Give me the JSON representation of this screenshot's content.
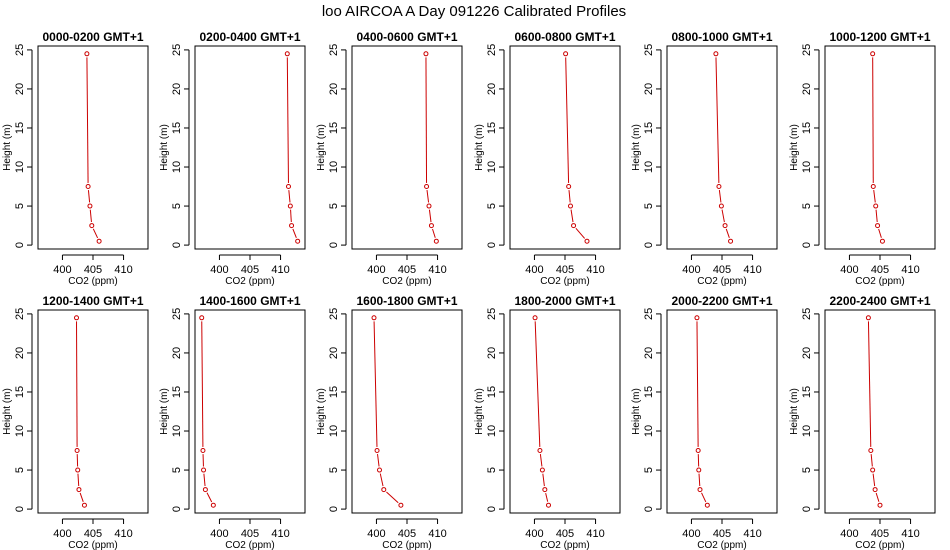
{
  "figure": {
    "title": "loo AIRCOA A  Day 091226  Calibrated Profiles"
  },
  "chart_data": [
    {
      "type": "line",
      "title": "0000-0200 GMT+1",
      "xlabel": "CO2 (ppm)",
      "ylabel": "Height (m)",
      "xlim": [
        396,
        414
      ],
      "ylim": [
        -0.5,
        25.5
      ],
      "xticks": [
        400,
        405,
        410
      ],
      "yticks": [
        0,
        5,
        10,
        15,
        20,
        25
      ],
      "grid": false,
      "line_color": "#cc0000",
      "series": [
        {
          "x": [
            406.0,
            404.8,
            404.5,
            404.2,
            404.0
          ],
          "y": [
            0.5,
            2.5,
            5,
            7.5,
            24.5
          ]
        }
      ]
    },
    {
      "type": "line",
      "title": "0200-0400 GMT+1",
      "xlabel": "CO2 (ppm)",
      "ylabel": "Height (m)",
      "xlim": [
        396,
        414
      ],
      "ylim": [
        -0.5,
        25.5
      ],
      "xticks": [
        400,
        405,
        410
      ],
      "yticks": [
        0,
        5,
        10,
        15,
        20,
        25
      ],
      "grid": false,
      "line_color": "#cc0000",
      "series": [
        {
          "x": [
            412.8,
            411.8,
            411.6,
            411.3,
            411.1
          ],
          "y": [
            0.5,
            2.5,
            5,
            7.5,
            24.5
          ]
        }
      ]
    },
    {
      "type": "line",
      "title": "0400-0600 GMT+1",
      "xlabel": "CO2 (ppm)",
      "ylabel": "Height (m)",
      "xlim": [
        396,
        414
      ],
      "ylim": [
        -0.5,
        25.5
      ],
      "xticks": [
        400,
        405,
        410
      ],
      "yticks": [
        0,
        5,
        10,
        15,
        20,
        25
      ],
      "grid": false,
      "line_color": "#cc0000",
      "series": [
        {
          "x": [
            409.8,
            409.0,
            408.6,
            408.2,
            408.1
          ],
          "y": [
            0.5,
            2.5,
            5,
            7.5,
            24.5
          ]
        }
      ]
    },
    {
      "type": "line",
      "title": "0600-0800 GMT+1",
      "xlabel": "CO2 (ppm)",
      "ylabel": "Height (m)",
      "xlim": [
        396,
        414
      ],
      "ylim": [
        -0.5,
        25.5
      ],
      "xticks": [
        400,
        405,
        410
      ],
      "yticks": [
        0,
        5,
        10,
        15,
        20,
        25
      ],
      "grid": false,
      "line_color": "#cc0000",
      "series": [
        {
          "x": [
            408.6,
            406.4,
            405.9,
            405.6,
            405.1
          ],
          "y": [
            0.5,
            2.5,
            5,
            7.5,
            24.5
          ]
        }
      ]
    },
    {
      "type": "line",
      "title": "0800-1000 GMT+1",
      "xlabel": "CO2 (ppm)",
      "ylabel": "Height (m)",
      "xlim": [
        396,
        414
      ],
      "ylim": [
        -0.5,
        25.5
      ],
      "xticks": [
        400,
        405,
        410
      ],
      "yticks": [
        0,
        5,
        10,
        15,
        20,
        25
      ],
      "grid": false,
      "line_color": "#cc0000",
      "series": [
        {
          "x": [
            406.4,
            405.5,
            404.9,
            404.5,
            404.0
          ],
          "y": [
            0.5,
            2.5,
            5,
            7.5,
            24.5
          ]
        }
      ]
    },
    {
      "type": "line",
      "title": "1000-1200 GMT+1",
      "xlabel": "CO2 (ppm)",
      "ylabel": "Height (m)",
      "xlim": [
        396,
        414
      ],
      "ylim": [
        -0.5,
        25.5
      ],
      "xticks": [
        400,
        405,
        410
      ],
      "yticks": [
        0,
        5,
        10,
        15,
        20,
        25
      ],
      "grid": false,
      "line_color": "#cc0000",
      "series": [
        {
          "x": [
            405.4,
            404.6,
            404.3,
            403.9,
            403.8
          ],
          "y": [
            0.5,
            2.5,
            5,
            7.5,
            24.5
          ]
        }
      ]
    },
    {
      "type": "line",
      "title": "1200-1400 GMT+1",
      "xlabel": "CO2 (ppm)",
      "ylabel": "Height (m)",
      "xlim": [
        396,
        414
      ],
      "ylim": [
        -0.5,
        25.5
      ],
      "xticks": [
        400,
        405,
        410
      ],
      "yticks": [
        0,
        5,
        10,
        15,
        20,
        25
      ],
      "grid": false,
      "line_color": "#cc0000",
      "series": [
        {
          "x": [
            403.6,
            402.7,
            402.5,
            402.4,
            402.3
          ],
          "y": [
            0.5,
            2.5,
            5,
            7.5,
            24.5
          ]
        }
      ]
    },
    {
      "type": "line",
      "title": "1400-1600 GMT+1",
      "xlabel": "CO2 (ppm)",
      "ylabel": "Height (m)",
      "xlim": [
        396,
        414
      ],
      "ylim": [
        -0.5,
        25.5
      ],
      "xticks": [
        400,
        405,
        410
      ],
      "yticks": [
        0,
        5,
        10,
        15,
        20,
        25
      ],
      "grid": false,
      "line_color": "#cc0000",
      "series": [
        {
          "x": [
            399.0,
            397.7,
            397.4,
            397.3,
            397.1
          ],
          "y": [
            0.5,
            2.5,
            5,
            7.5,
            24.5
          ]
        }
      ]
    },
    {
      "type": "line",
      "title": "1600-1800 GMT+1",
      "xlabel": "CO2 (ppm)",
      "ylabel": "Height (m)",
      "xlim": [
        396,
        414
      ],
      "ylim": [
        -0.5,
        25.5
      ],
      "xticks": [
        400,
        405,
        410
      ],
      "yticks": [
        0,
        5,
        10,
        15,
        20,
        25
      ],
      "grid": false,
      "line_color": "#cc0000",
      "series": [
        {
          "x": [
            404.0,
            401.2,
            400.5,
            400.1,
            399.6
          ],
          "y": [
            0.5,
            2.5,
            5,
            7.5,
            24.5
          ]
        }
      ]
    },
    {
      "type": "line",
      "title": "1800-2000 GMT+1",
      "xlabel": "CO2 (ppm)",
      "ylabel": "Height (m)",
      "xlim": [
        396,
        414
      ],
      "ylim": [
        -0.5,
        25.5
      ],
      "xticks": [
        400,
        405,
        410
      ],
      "yticks": [
        0,
        5,
        10,
        15,
        20,
        25
      ],
      "grid": false,
      "line_color": "#cc0000",
      "series": [
        {
          "x": [
            402.3,
            401.7,
            401.3,
            400.9,
            400.1
          ],
          "y": [
            0.5,
            2.5,
            5,
            7.5,
            24.5
          ]
        }
      ]
    },
    {
      "type": "line",
      "title": "2000-2200 GMT+1",
      "xlabel": "CO2 (ppm)",
      "ylabel": "Height (m)",
      "xlim": [
        396,
        414
      ],
      "ylim": [
        -0.5,
        25.5
      ],
      "xticks": [
        400,
        405,
        410
      ],
      "yticks": [
        0,
        5,
        10,
        15,
        20,
        25
      ],
      "grid": false,
      "line_color": "#cc0000",
      "series": [
        {
          "x": [
            402.6,
            401.4,
            401.2,
            401.1,
            400.9
          ],
          "y": [
            0.5,
            2.5,
            5,
            7.5,
            24.5
          ]
        }
      ]
    },
    {
      "type": "line",
      "title": "2200-2400 GMT+1",
      "xlabel": "CO2 (ppm)",
      "ylabel": "Height (m)",
      "xlim": [
        396,
        414
      ],
      "ylim": [
        -0.5,
        25.5
      ],
      "xticks": [
        400,
        405,
        410
      ],
      "yticks": [
        0,
        5,
        10,
        15,
        20,
        25
      ],
      "grid": false,
      "line_color": "#cc0000",
      "series": [
        {
          "x": [
            405.0,
            404.2,
            403.8,
            403.5,
            403.1
          ],
          "y": [
            0.5,
            2.5,
            5,
            7.5,
            24.5
          ]
        }
      ]
    }
  ]
}
